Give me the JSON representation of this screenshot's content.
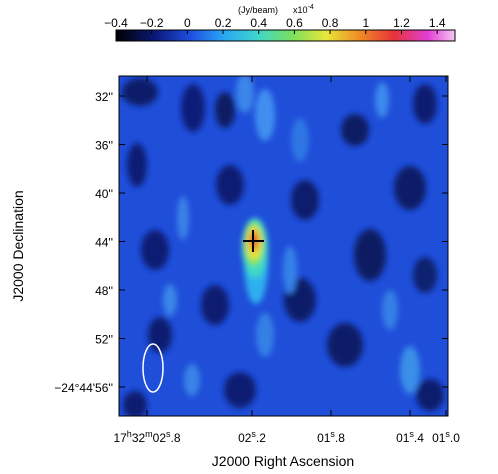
{
  "colorbar": {
    "unit_label": "(Jy/beam)",
    "scale_label": "x10",
    "scale_exponent": "-4",
    "tick_labels": [
      "−0.4",
      "−0.2",
      "0",
      "0.2",
      "0.4",
      "0.6",
      "0.8",
      "1",
      "1.2",
      "1.4"
    ],
    "range": [
      -0.4,
      1.5
    ]
  },
  "axes": {
    "xlabel": "J2000 Right Ascension",
    "ylabel": "J2000 Declination",
    "x_ticks": [
      {
        "h": "17",
        "m": "32",
        "s": "02",
        "frac": ".8",
        "full": true
      },
      {
        "s": "02",
        "frac": ".2"
      },
      {
        "s": "01",
        "frac": ".8"
      },
      {
        "s": "01",
        "frac": ".4"
      },
      {
        "s": "01",
        "frac": ".0"
      }
    ],
    "y_ticks": [
      "32''",
      "36''",
      "40''",
      "44''",
      "48''",
      "52''",
      "−24°44'56''"
    ]
  },
  "image": {
    "source_marker": "cross",
    "beam_shape": "ellipse",
    "colormap": [
      "#000000",
      "#0b1a7e",
      "#1d4fe0",
      "#2aa8f4",
      "#3fd7c9",
      "#7be05c",
      "#e8e63a",
      "#f08a25",
      "#e7333a",
      "#e23fd4",
      "#f7c6f4"
    ]
  }
}
